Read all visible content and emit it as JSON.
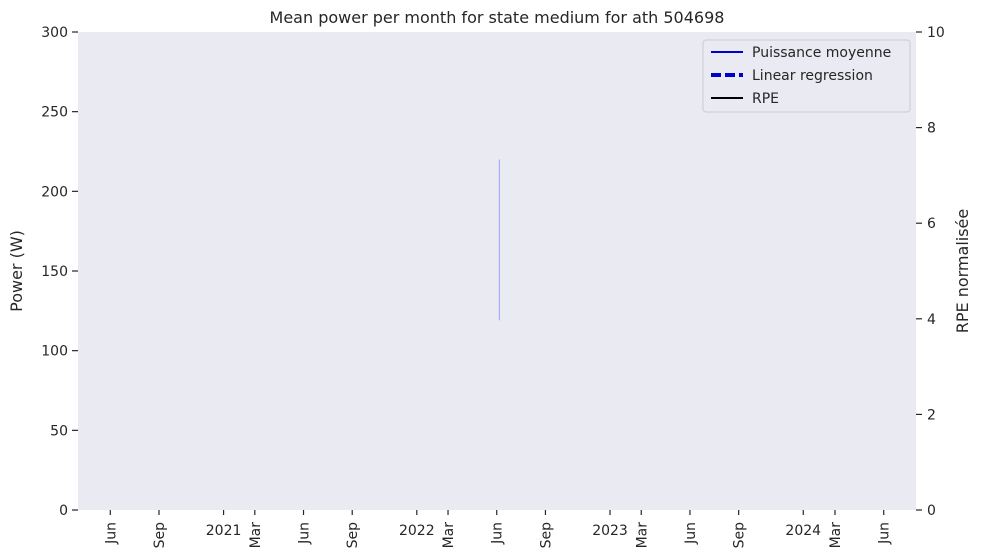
{
  "chart_data": {
    "type": "line",
    "title": "Mean power per month for state medium for ath 504698",
    "ylabel": "Power (W)",
    "ylabel_right": "RPE normalisée",
    "ylim": [
      0,
      300
    ],
    "ylim_right": [
      0,
      10
    ],
    "yticks": [
      0,
      50,
      100,
      150,
      200,
      250,
      300
    ],
    "yticks_right": [
      0,
      2,
      4,
      6,
      8,
      10
    ],
    "xlim": [
      "2020-04-01",
      "2024-08-01"
    ],
    "xticks": [
      {
        "date": "2020-06-01",
        "label": "Jun",
        "rotated": true
      },
      {
        "date": "2020-09-01",
        "label": "Sep",
        "rotated": true
      },
      {
        "date": "2021-01-01",
        "label": "2021",
        "rotated": false
      },
      {
        "date": "2021-03-01",
        "label": "Mar",
        "rotated": true
      },
      {
        "date": "2021-06-01",
        "label": "Jun",
        "rotated": true
      },
      {
        "date": "2021-09-01",
        "label": "Sep",
        "rotated": true
      },
      {
        "date": "2022-01-01",
        "label": "2022",
        "rotated": false
      },
      {
        "date": "2022-03-01",
        "label": "Mar",
        "rotated": true
      },
      {
        "date": "2022-06-01",
        "label": "Jun",
        "rotated": true
      },
      {
        "date": "2022-09-01",
        "label": "Sep",
        "rotated": true
      },
      {
        "date": "2023-01-01",
        "label": "2023",
        "rotated": false
      },
      {
        "date": "2023-03-01",
        "label": "Mar",
        "rotated": true
      },
      {
        "date": "2023-06-01",
        "label": "Jun",
        "rotated": true
      },
      {
        "date": "2023-09-01",
        "label": "Sep",
        "rotated": true
      },
      {
        "date": "2024-01-01",
        "label": "2024",
        "rotated": false
      },
      {
        "date": "2024-03-01",
        "label": "Mar",
        "rotated": true
      },
      {
        "date": "2024-06-01",
        "label": "Jun",
        "rotated": true
      }
    ],
    "series": [
      {
        "name": "Puissance moyenne",
        "color": "#0000cc",
        "style": "solid",
        "points": []
      },
      {
        "name": "Linear regression",
        "color": "#0000cc",
        "style": "dashed",
        "points": []
      },
      {
        "name": "RPE",
        "color": "#000000",
        "style": "solid",
        "points": []
      }
    ],
    "error_bars": [
      {
        "x": "2022-06-06",
        "y_low": 119,
        "y_high": 220,
        "color": "#aaaaff"
      }
    ],
    "grid": false,
    "legend_position": "top-right",
    "background": "#eaeaf2"
  }
}
